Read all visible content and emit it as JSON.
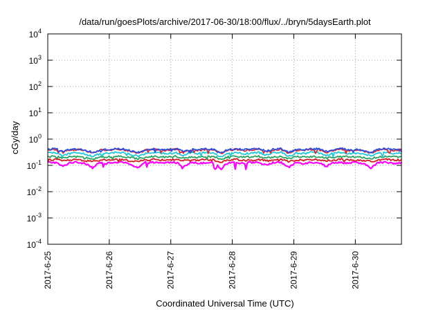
{
  "chart_data": {
    "type": "line",
    "title": "/data/run/goesPlots/archive/2017-06-30/18:00/flux/../bryn/5daysEarth.plot",
    "xlabel": "Coordinated Universal Time (UTC)",
    "ylabel": "cGy/day",
    "y_scale": "log",
    "ylim": [
      0.0001,
      10000
    ],
    "y_ticks": [
      {
        "value": 0.0001,
        "base": "10",
        "exp": "-4"
      },
      {
        "value": 0.001,
        "base": "10",
        "exp": "-3"
      },
      {
        "value": 0.01,
        "base": "10",
        "exp": "-2"
      },
      {
        "value": 0.1,
        "base": "10",
        "exp": "-1"
      },
      {
        "value": 1,
        "base": "10",
        "exp": "0"
      },
      {
        "value": 10,
        "base": "10",
        "exp": "1"
      },
      {
        "value": 100,
        "base": "10",
        "exp": "2"
      },
      {
        "value": 1000,
        "base": "10",
        "exp": "3"
      },
      {
        "value": 10000,
        "base": "10",
        "exp": "4"
      }
    ],
    "xlim": [
      "2017-06-25T00:00",
      "2017-06-30T18:00"
    ],
    "x_ticks": [
      "2017-6-25",
      "2017-6-26",
      "2017-6-27",
      "2017-6-28",
      "2017-6-29",
      "2017-6-30"
    ],
    "grid": true,
    "series": [
      {
        "color": "#ff00ff",
        "base": 0.13,
        "dip_min": 0.07,
        "values": [
          0.13,
          0.13,
          0.09,
          0.13,
          0.13,
          0.12,
          0.08,
          0.13,
          0.12,
          0.13,
          0.13,
          0.11,
          0.08,
          0.13,
          0.13,
          0.12,
          0.13,
          0.13,
          0.09,
          0.13,
          0.12,
          0.13,
          0.13,
          0.07,
          0.13,
          0.13,
          0.12,
          0.13,
          0.13,
          0.1,
          0.13,
          0.13,
          0.08,
          0.13,
          0.12,
          0.13,
          0.13,
          0.09,
          0.13,
          0.13,
          0.12,
          0.13,
          0.11,
          0.08,
          0.13,
          0.13,
          0.12,
          0.13
        ]
      },
      {
        "color": "#d7191c",
        "base": 0.16,
        "dip_min": 0.13,
        "values": [
          0.16,
          0.17,
          0.15,
          0.16,
          0.16,
          0.15,
          0.14,
          0.16,
          0.16,
          0.17,
          0.16,
          0.15,
          0.14,
          0.16,
          0.17,
          0.16,
          0.16,
          0.17,
          0.15,
          0.16,
          0.16,
          0.17,
          0.16,
          0.13,
          0.16,
          0.17,
          0.16,
          0.16,
          0.17,
          0.15,
          0.16,
          0.17,
          0.14,
          0.16,
          0.16,
          0.17,
          0.16,
          0.15,
          0.16,
          0.17,
          0.16,
          0.16,
          0.15,
          0.14,
          0.16,
          0.17,
          0.16,
          0.16
        ]
      },
      {
        "color": "#2ca25f",
        "base": 0.21,
        "dip_min": 0.17,
        "values": [
          0.21,
          0.22,
          0.19,
          0.21,
          0.21,
          0.2,
          0.18,
          0.21,
          0.21,
          0.22,
          0.21,
          0.2,
          0.18,
          0.21,
          0.22,
          0.21,
          0.21,
          0.22,
          0.19,
          0.21,
          0.21,
          0.22,
          0.21,
          0.17,
          0.21,
          0.22,
          0.21,
          0.21,
          0.22,
          0.19,
          0.21,
          0.22,
          0.18,
          0.21,
          0.21,
          0.22,
          0.21,
          0.19,
          0.21,
          0.22,
          0.21,
          0.21,
          0.2,
          0.18,
          0.21,
          0.22,
          0.21,
          0.21
        ]
      },
      {
        "color": "#1ec8d8",
        "base": 0.29,
        "dip_min": 0.2,
        "values": [
          0.29,
          0.31,
          0.24,
          0.29,
          0.3,
          0.27,
          0.21,
          0.29,
          0.28,
          0.31,
          0.3,
          0.26,
          0.22,
          0.29,
          0.31,
          0.29,
          0.28,
          0.31,
          0.24,
          0.3,
          0.28,
          0.31,
          0.29,
          0.2,
          0.29,
          0.31,
          0.28,
          0.29,
          0.31,
          0.25,
          0.3,
          0.31,
          0.22,
          0.29,
          0.28,
          0.31,
          0.3,
          0.24,
          0.29,
          0.31,
          0.28,
          0.29,
          0.27,
          0.22,
          0.29,
          0.31,
          0.28,
          0.3
        ]
      },
      {
        "color": "#e3262b",
        "base": 0.38,
        "dip_min": 0.28,
        "values": [
          0.38,
          0.41,
          0.32,
          0.39,
          0.4,
          0.35,
          0.29,
          0.38,
          0.37,
          0.42,
          0.4,
          0.34,
          0.29,
          0.38,
          0.41,
          0.38,
          0.37,
          0.42,
          0.31,
          0.39,
          0.37,
          0.41,
          0.38,
          0.28,
          0.38,
          0.41,
          0.37,
          0.39,
          0.42,
          0.33,
          0.39,
          0.41,
          0.29,
          0.38,
          0.37,
          0.41,
          0.4,
          0.32,
          0.38,
          0.42,
          0.37,
          0.38,
          0.35,
          0.29,
          0.39,
          0.41,
          0.37,
          0.4
        ]
      },
      {
        "color": "#2b4fe0",
        "base": 0.4,
        "dip_min": 0.3,
        "values": [
          0.4,
          0.43,
          0.34,
          0.41,
          0.42,
          0.37,
          0.31,
          0.4,
          0.39,
          0.44,
          0.42,
          0.36,
          0.31,
          0.4,
          0.43,
          0.4,
          0.39,
          0.44,
          0.33,
          0.41,
          0.39,
          0.43,
          0.4,
          0.3,
          0.4,
          0.43,
          0.39,
          0.41,
          0.44,
          0.35,
          0.41,
          0.43,
          0.31,
          0.4,
          0.39,
          0.43,
          0.42,
          0.34,
          0.4,
          0.44,
          0.39,
          0.4,
          0.37,
          0.31,
          0.41,
          0.43,
          0.39,
          0.42
        ]
      }
    ]
  }
}
